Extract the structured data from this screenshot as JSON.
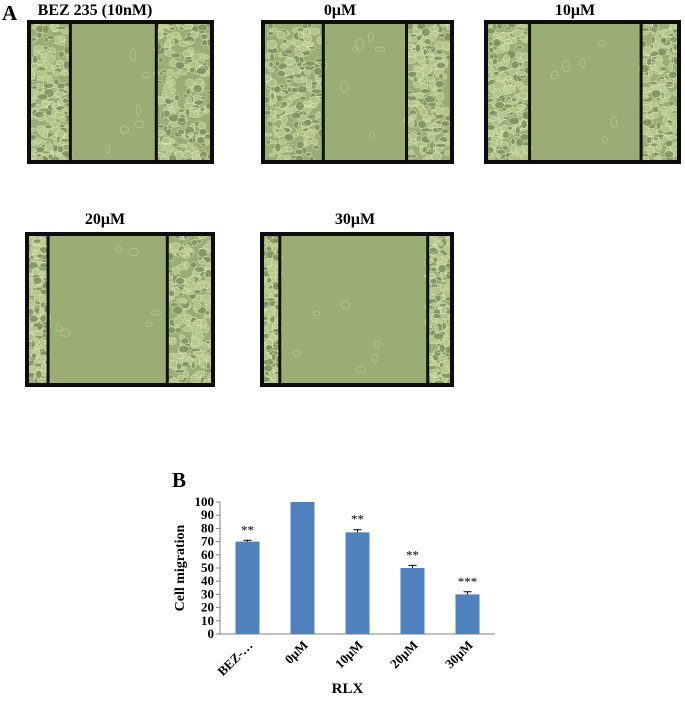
{
  "figure": {
    "panel_a": "A",
    "panel_b": "B"
  },
  "images": [
    {
      "label": "BEZ 235 (10nM)",
      "lines": [
        0.22,
        0.7
      ]
    },
    {
      "label": "0μM",
      "lines": [
        0.315,
        0.765
      ]
    },
    {
      "label": "10μM",
      "lines": [
        0.22,
        0.81
      ]
    },
    {
      "label": "20μM",
      "lines": [
        0.105,
        0.76
      ]
    },
    {
      "label": "30μM",
      "lines": [
        0.085,
        0.88
      ]
    }
  ],
  "chart_data": {
    "type": "bar",
    "categories": [
      "BEZ-…",
      "0μM",
      "10μM",
      "20μM",
      "30μM"
    ],
    "values": [
      70,
      100,
      77,
      50,
      30
    ],
    "errors": [
      1,
      0,
      2,
      2,
      2
    ],
    "annotations": [
      "**",
      "",
      "**",
      "**",
      "***"
    ],
    "ylabel": "Cell migration",
    "xlabel": "RLX",
    "ylim": [
      0,
      100
    ],
    "yticks": [
      0,
      10,
      20,
      30,
      40,
      50,
      60,
      70,
      80,
      90,
      100
    ],
    "bar_color": "#4f81bd",
    "grid": false
  }
}
